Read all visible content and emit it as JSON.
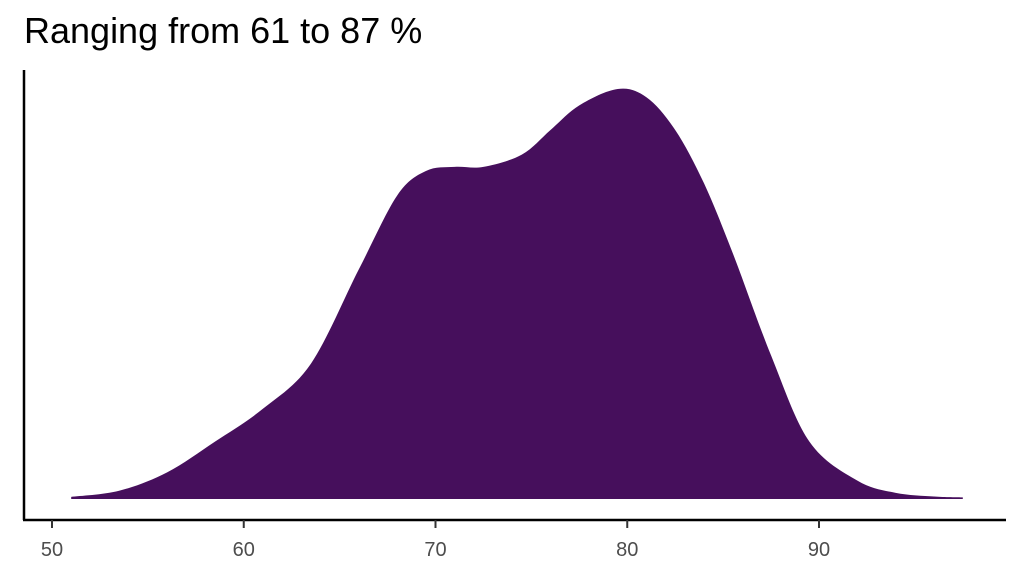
{
  "chart_data": {
    "type": "area",
    "title": "Ranging from 61 to 87 %",
    "xlabel": "",
    "ylabel": "",
    "xlim": [
      49.5,
      99
    ],
    "ylim": [
      0,
      1
    ],
    "x_ticks": [
      50,
      60,
      70,
      80,
      90
    ],
    "x_tick_labels": [
      "50",
      "60",
      "70",
      "80",
      "90"
    ],
    "grid": false,
    "legend": "none",
    "series": [
      {
        "fill": "#460f5c",
        "x": [
          51.0,
          53.5,
          56.0,
          58.5,
          61.0,
          63.5,
          66.0,
          68.0,
          69.5,
          71.0,
          72.5,
          74.5,
          76.0,
          77.5,
          79.5,
          81.0,
          82.5,
          84.0,
          85.5,
          87.5,
          89.5,
          92.0,
          94.0,
          96.0,
          97.5
        ],
        "y": [
          0.005,
          0.02,
          0.065,
          0.14,
          0.22,
          0.33,
          0.56,
          0.74,
          0.8,
          0.81,
          0.81,
          0.84,
          0.9,
          0.96,
          1.0,
          0.98,
          0.9,
          0.77,
          0.6,
          0.35,
          0.14,
          0.045,
          0.015,
          0.006,
          0.004
        ]
      }
    ]
  }
}
